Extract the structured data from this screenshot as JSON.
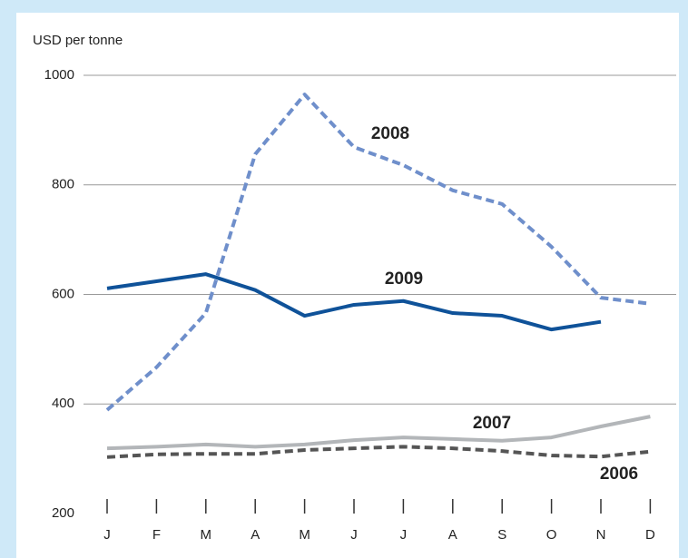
{
  "chart_data": {
    "type": "line",
    "y_label": "USD per tonne",
    "categories": [
      "J",
      "F",
      "M",
      "A",
      "M",
      "J",
      "J",
      "A",
      "S",
      "O",
      "N",
      "D"
    ],
    "series": [
      {
        "name": "2008",
        "color": "#6f8fcb",
        "dash": true,
        "values": [
          389,
          467,
          566,
          856,
          965,
          869,
          836,
          790,
          765,
          687,
          594,
          583
        ]
      },
      {
        "name": "2009",
        "color": "#0f5299",
        "dash": false,
        "values": [
          611,
          624,
          637,
          608,
          561,
          581,
          588,
          566,
          561,
          536,
          550,
          null
        ]
      },
      {
        "name": "2007",
        "color": "#b3b6b9",
        "dash": false,
        "values": [
          319,
          322,
          326,
          322,
          326,
          334,
          339,
          336,
          333,
          339,
          359,
          377
        ]
      },
      {
        "name": "2006",
        "color": "#555555",
        "dash": true,
        "values": [
          303,
          308,
          309,
          309,
          316,
          319,
          322,
          319,
          314,
          306,
          304,
          313
        ]
      }
    ],
    "ylim": [
      200,
      1000
    ],
    "yticks": [
      200,
      400,
      600,
      800,
      1000
    ],
    "grid": true
  }
}
